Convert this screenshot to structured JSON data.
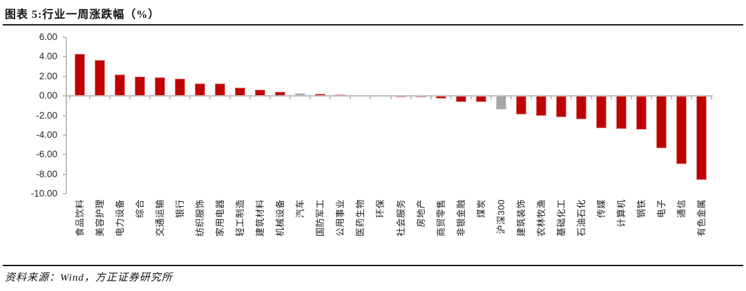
{
  "title": "图表 5:行业一周涨跌幅（%）",
  "footer": {
    "source": "资料来源：Wind，方正证券研究所"
  },
  "chart_data": {
    "type": "bar",
    "title": "图表 5:行业一周涨跌幅（%）",
    "xlabel": "",
    "ylabel": "",
    "ylim": [
      -10,
      6
    ],
    "y_tick_labels": [
      "6.00",
      "4.00",
      "2.00",
      "0.00",
      "-2.00",
      "-4.00",
      "-6.00",
      "-8.00",
      "-10.00"
    ],
    "grid": "off",
    "legend": "none",
    "categories": [
      "食品饮料",
      "美容护理",
      "电力设备",
      "综合",
      "交通运输",
      "银行",
      "纺织服饰",
      "家用电器",
      "轻工制造",
      "建筑材料",
      "机械设备",
      "汽车",
      "国防军工",
      "公用事业",
      "医药生物",
      "环保",
      "社会服务",
      "房地产",
      "商贸零售",
      "非银金融",
      "煤炭",
      "沪深300",
      "建筑装饰",
      "农林牧渔",
      "基础化工",
      "石油石化",
      "传媒",
      "计算机",
      "钢铁",
      "电子",
      "通信",
      "有色金属"
    ],
    "values": [
      4.3,
      3.65,
      2.2,
      1.95,
      1.9,
      1.75,
      1.3,
      1.25,
      0.85,
      0.65,
      0.4,
      0.3,
      0.25,
      0.15,
      0.1,
      0.05,
      0.0,
      -0.05,
      -0.3,
      -0.65,
      -0.65,
      -1.4,
      -1.9,
      -2.05,
      -2.2,
      -2.4,
      -3.3,
      -3.35,
      -3.45,
      -5.35,
      -7.0,
      -8.6
    ],
    "gray_categories": [
      "汽车",
      "沪深300"
    ],
    "colors": {
      "bar": "#C00000",
      "benchmark_bar": "#A6A6A6",
      "axis": "#BFBFBF"
    }
  }
}
